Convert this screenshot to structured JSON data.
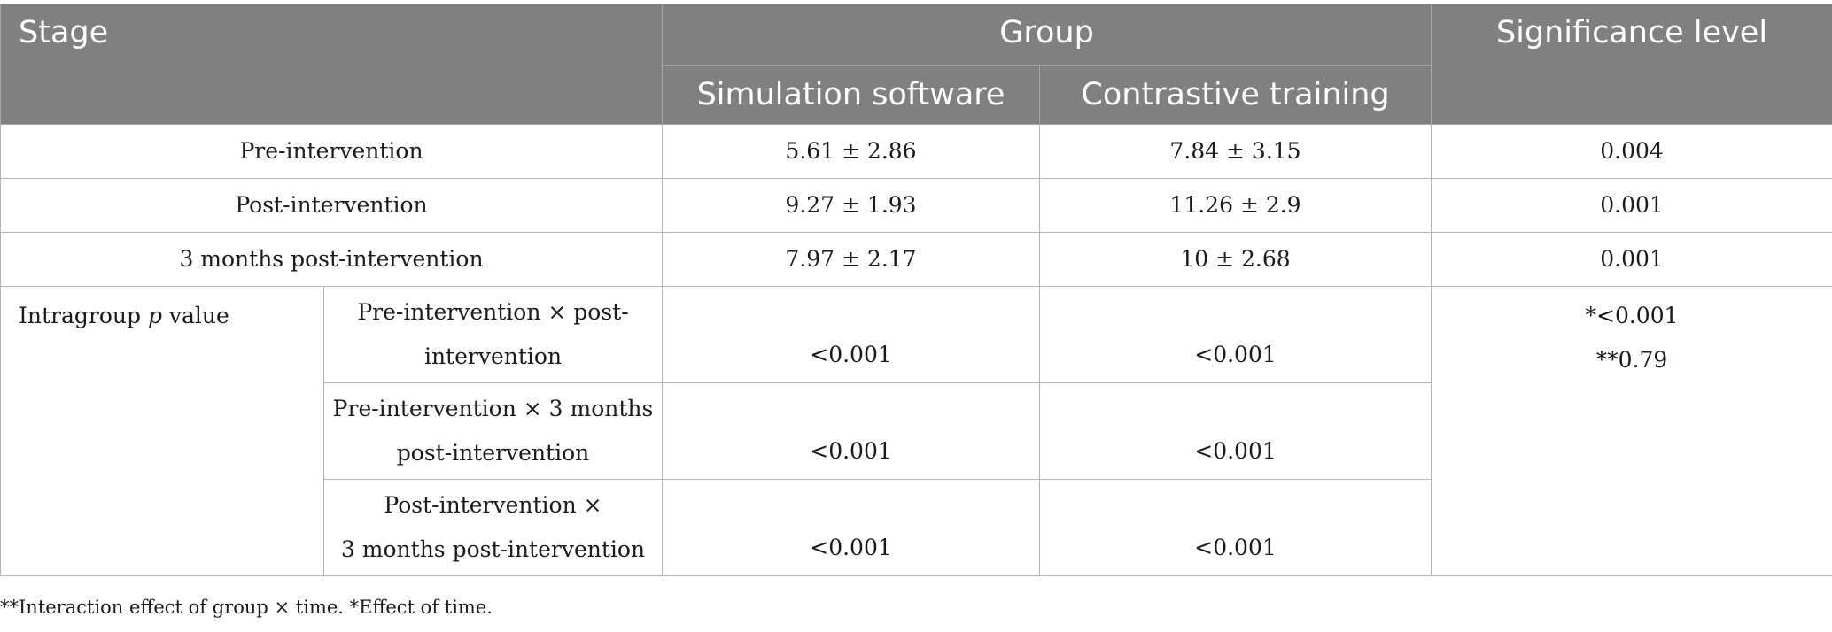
{
  "headers": {
    "stage": "Stage",
    "group": "Group",
    "significance": "Significance level",
    "simulation": "Simulation software",
    "contrastive": "Contrastive training"
  },
  "rows": [
    {
      "stage": "Pre-intervention",
      "simulation": "5.61 ± 2.86",
      "contrastive": "7.84 ± 3.15",
      "significance": "0.004"
    },
    {
      "stage": "Post-intervention",
      "simulation": "9.27 ± 1.93",
      "contrastive": "11.26 ± 2.9",
      "significance": "0.001"
    },
    {
      "stage": "3 months post-intervention",
      "simulation": "7.97 ± 2.17",
      "contrastive": "10 ± 2.68",
      "significance": "0.001"
    }
  ],
  "intragroup": {
    "label_prefix": "Intragroup ",
    "label_p": "p",
    "label_suffix": " value",
    "comparisons": [
      {
        "line1": "Pre-intervention × post-",
        "line2": "intervention",
        "simulation": "<0.001",
        "contrastive": "<0.001"
      },
      {
        "line1": "Pre-intervention × 3 months",
        "line2": "post-intervention",
        "simulation": "<0.001",
        "contrastive": "<0.001"
      },
      {
        "line1": "Post-intervention ×",
        "line2": "3 months post-intervention",
        "simulation": "<0.001",
        "contrastive": "<0.001"
      }
    ],
    "significance_lines": [
      "*<0.001",
      "**0.79"
    ]
  },
  "footnote": "**Interaction effect of group × time. *Effect of time."
}
